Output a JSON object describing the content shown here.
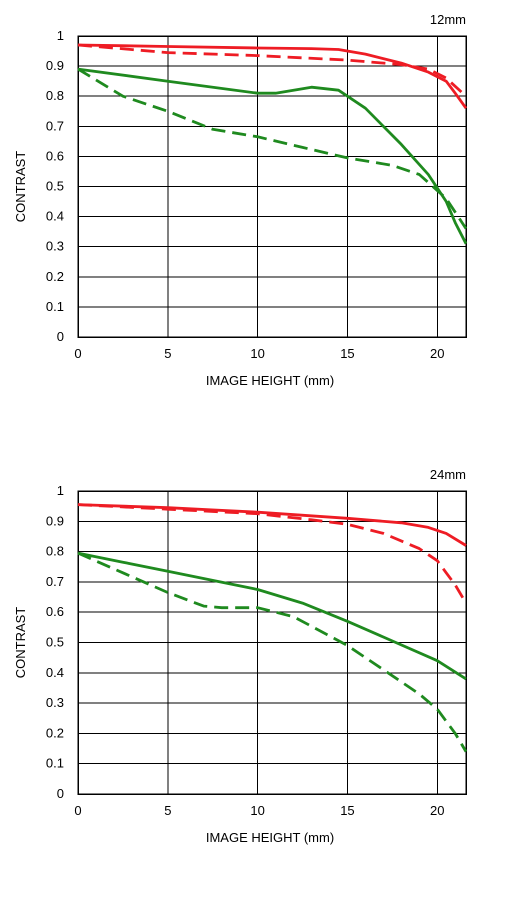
{
  "colors": {
    "red": "#ee1c24",
    "green": "#1f8a1f"
  },
  "chart_data": [
    {
      "type": "line",
      "title": "12mm",
      "xlabel": "IMAGE HEIGHT (mm)",
      "ylabel": "CONTRAST",
      "xlim": [
        0,
        21.6
      ],
      "ylim": [
        0,
        1
      ],
      "xticks": [
        "0",
        "5",
        "10",
        "15",
        "20"
      ],
      "yticks": [
        "0",
        "0.1",
        "0.2",
        "0.3",
        "0.4",
        "0.5",
        "0.6",
        "0.7",
        "0.8",
        "0.9",
        "1"
      ],
      "grid": true,
      "series": [
        {
          "color": "red",
          "style": "solid",
          "x": [
            0,
            5,
            10,
            13,
            14.5,
            16,
            18,
            19.5,
            20.5,
            21,
            21.6
          ],
          "y": [
            0.97,
            0.965,
            0.96,
            0.958,
            0.955,
            0.94,
            0.91,
            0.88,
            0.85,
            0.81,
            0.76
          ]
        },
        {
          "color": "red",
          "style": "dashed",
          "x": [
            0,
            5,
            10,
            15,
            18,
            19.5,
            20.5,
            21.6
          ],
          "y": [
            0.97,
            0.945,
            0.935,
            0.92,
            0.905,
            0.89,
            0.86,
            0.8
          ]
        },
        {
          "color": "green",
          "style": "solid",
          "x": [
            0,
            5,
            10,
            11,
            13,
            14.5,
            16,
            18,
            19.5,
            20.5,
            21,
            21.6
          ],
          "y": [
            0.89,
            0.85,
            0.81,
            0.81,
            0.83,
            0.82,
            0.76,
            0.64,
            0.54,
            0.45,
            0.38,
            0.31
          ]
        },
        {
          "color": "green",
          "style": "dashed",
          "x": [
            0,
            2.5,
            5,
            7.5,
            10,
            12.5,
            15,
            17.5,
            19,
            20.5,
            21.6
          ],
          "y": [
            0.89,
            0.8,
            0.75,
            0.69,
            0.665,
            0.63,
            0.595,
            0.57,
            0.54,
            0.46,
            0.36
          ]
        }
      ]
    },
    {
      "type": "line",
      "title": "24mm",
      "xlabel": "IMAGE HEIGHT (mm)",
      "ylabel": "CONTRAST",
      "xlim": [
        0,
        21.6
      ],
      "ylim": [
        0,
        1
      ],
      "xticks": [
        "0",
        "5",
        "10",
        "15",
        "20"
      ],
      "yticks": [
        "0",
        "0.1",
        "0.2",
        "0.3",
        "0.4",
        "0.5",
        "0.6",
        "0.7",
        "0.8",
        "0.9",
        "1"
      ],
      "grid": true,
      "series": [
        {
          "color": "red",
          "style": "solid",
          "x": [
            0,
            5,
            10,
            15,
            18,
            19.5,
            20.5,
            21.6
          ],
          "y": [
            0.955,
            0.945,
            0.93,
            0.91,
            0.895,
            0.88,
            0.86,
            0.82
          ]
        },
        {
          "color": "red",
          "style": "dashed",
          "x": [
            0,
            5,
            10,
            13,
            15,
            17,
            19,
            20,
            20.5,
            21,
            21.6
          ],
          "y": [
            0.955,
            0.94,
            0.925,
            0.905,
            0.89,
            0.86,
            0.81,
            0.77,
            0.73,
            0.69,
            0.63
          ]
        },
        {
          "color": "green",
          "style": "solid",
          "x": [
            0,
            2.5,
            5,
            7.5,
            10,
            12.5,
            15,
            17.5,
            20,
            21.6
          ],
          "y": [
            0.795,
            0.765,
            0.735,
            0.705,
            0.675,
            0.63,
            0.57,
            0.505,
            0.44,
            0.38
          ]
        },
        {
          "color": "green",
          "style": "dashed",
          "x": [
            0,
            2.5,
            5,
            7,
            8,
            9,
            10,
            12,
            15,
            17.5,
            19,
            20,
            20.5,
            21,
            21.6
          ],
          "y": [
            0.795,
            0.73,
            0.665,
            0.62,
            0.615,
            0.615,
            0.615,
            0.585,
            0.49,
            0.39,
            0.33,
            0.28,
            0.24,
            0.2,
            0.14
          ]
        }
      ]
    }
  ]
}
